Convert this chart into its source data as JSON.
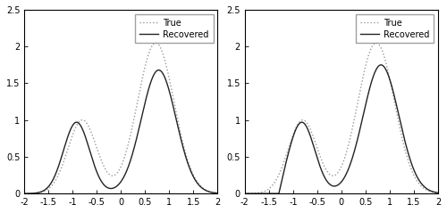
{
  "xlim": [
    -2,
    2
  ],
  "ylim": [
    0,
    2.5
  ],
  "xticks": [
    -2,
    -1.5,
    -1,
    -0.5,
    0,
    0.5,
    1,
    1.5,
    2
  ],
  "xticklabels": [
    "-2",
    "-1.5",
    "-1",
    "-0.5",
    "0",
    "0.5",
    "1",
    "1.5",
    "2"
  ],
  "yticks": [
    0,
    0.5,
    1,
    1.5,
    2,
    2.5
  ],
  "yticklabels": [
    "0",
    "0.5",
    "1",
    "1.5",
    "2",
    "2.5"
  ],
  "legend_labels": [
    "True",
    "Recovered"
  ],
  "true_color": "#999999",
  "recovered_color": "#222222",
  "figsize": [
    5.0,
    2.39
  ],
  "dpi": 100
}
